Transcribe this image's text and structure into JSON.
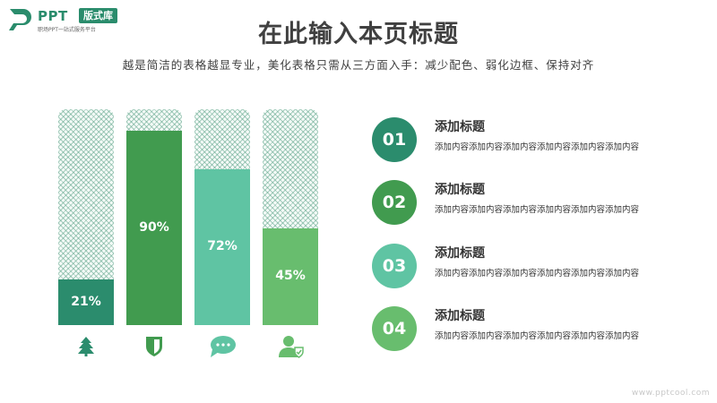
{
  "logo": {
    "text": "PPT",
    "badge": "版式库",
    "subtitle": "职场PPT一站式服务平台"
  },
  "title": "在此输入本页标题",
  "subtitle": "越是简洁的表格越显专业，美化表格只需从三方面入手：减少配色、弱化边框、保持对齐",
  "colors": {
    "dark_teal": "#2b8c6d",
    "green": "#419b4f",
    "mint": "#5fc4a3",
    "light_green": "#68bd6e",
    "pattern": "#6aa58f"
  },
  "bars": [
    {
      "value_label": "21%",
      "value": 21,
      "color": "#2b8c6d",
      "icon": "tree-icon"
    },
    {
      "value_label": "90%",
      "value": 90,
      "color": "#419b4f",
      "icon": "shield-icon"
    },
    {
      "value_label": "72%",
      "value": 72,
      "color": "#5fc4a3",
      "icon": "chat-bubble-icon"
    },
    {
      "value_label": "45%",
      "value": 45,
      "color": "#68bd6e",
      "icon": "user-shield-icon"
    }
  ],
  "items": [
    {
      "number": "01",
      "title": "添加标题",
      "desc": "添加内容添加内容添加内容添加内容添加内容添加内容",
      "color": "#2b8c6d"
    },
    {
      "number": "02",
      "title": "添加标题",
      "desc": "添加内容添加内容添加内容添加内容添加内容添加内容",
      "color": "#419b4f"
    },
    {
      "number": "03",
      "title": "添加标题",
      "desc": "添加内容添加内容添加内容添加内容添加内容添加内容",
      "color": "#5fc4a3"
    },
    {
      "number": "04",
      "title": "添加标题",
      "desc": "添加内容添加内容添加内容添加内容添加内容添加内容",
      "color": "#68bd6e"
    }
  ],
  "watermark": "www.pptcool.com"
}
